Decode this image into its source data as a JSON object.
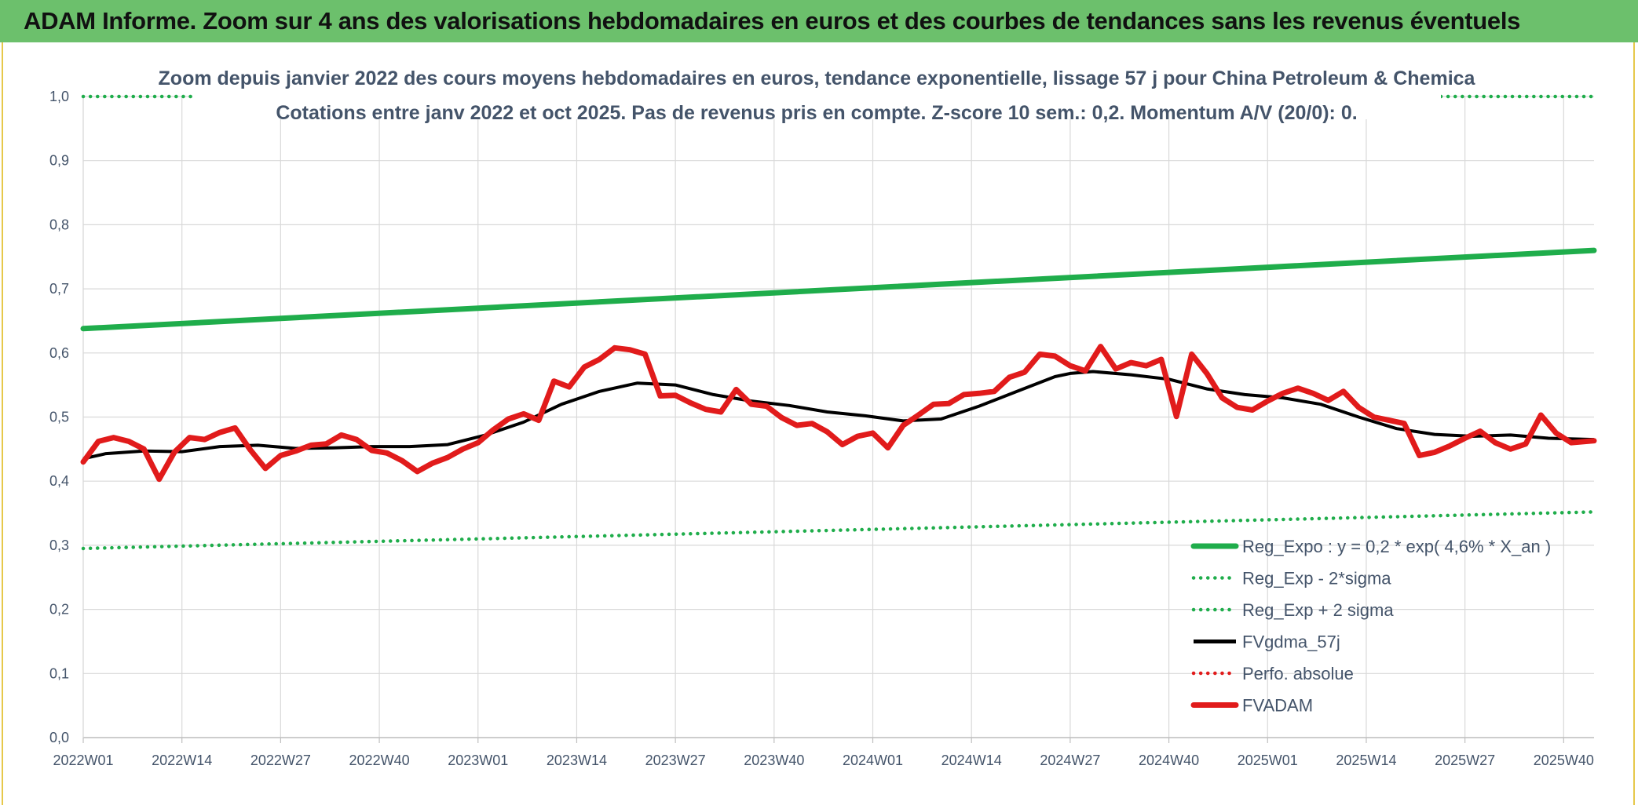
{
  "header": {
    "title": "ADAM Informe. Zoom sur 4 ans des valorisations hebdomadaires en euros et des courbes de tendances sans les revenus éventuels"
  },
  "chart_data": {
    "type": "line",
    "title": "Zoom depuis janvier 2022 des cours moyens hebdomadaires en euros, tendance exponentielle, lissage 57 j pour China Petroleum & Chemica",
    "subtitle": "Cotations entre janv 2022 et oct 2025. Pas de revenus pris en compte. Z-score 10 sem.: 0,2. Momentum A/V (20/0): 0.",
    "xlabel": "",
    "ylabel": "",
    "ylim": [
      0,
      1.0
    ],
    "y_ticks": [
      "0,0",
      "0,1",
      "0,2",
      "0,3",
      "0,4",
      "0,5",
      "0,6",
      "0,7",
      "0,8",
      "0,9",
      "1,0"
    ],
    "x_ticks": [
      "2022W01",
      "2022W14",
      "2022W27",
      "2022W40",
      "2023W01",
      "2023W14",
      "2023W27",
      "2023W40",
      "2024W01",
      "2024W14",
      "2024W27",
      "2024W40",
      "2025W01",
      "2025W14",
      "2025W27",
      "2025W40"
    ],
    "x_tick_index": [
      0,
      13,
      26,
      39,
      52,
      65,
      78,
      91,
      104,
      117,
      130,
      143,
      156,
      169,
      182,
      195
    ],
    "n_weeks": 200,
    "grid": true,
    "legend_position": "bottom-right",
    "series": [
      {
        "name": "Reg_Expo : y = 0,2 * exp( 4,6% *  X_an )",
        "color": "#1fad4b",
        "style": "solid-thick",
        "x": [
          0,
          199
        ],
        "values": [
          0.638,
          0.76
        ]
      },
      {
        "name": "Reg_Exp - 2*sigma",
        "color": "#1fad4b",
        "style": "dotted",
        "x": [
          0,
          199
        ],
        "values": [
          0.295,
          0.352
        ]
      },
      {
        "name": "Reg_Exp + 2 sigma",
        "color": "#1fad4b",
        "style": "dotted",
        "x": [
          0,
          199
        ],
        "values": [
          1.0,
          1.0
        ]
      },
      {
        "name": "FVgdma_57j",
        "color": "#000000",
        "style": "solid",
        "x": [
          0,
          3,
          8,
          13,
          18,
          23,
          28,
          33,
          38,
          43,
          48,
          53,
          58,
          63,
          68,
          73,
          78,
          83,
          88,
          93,
          98,
          103,
          108,
          113,
          118,
          123,
          128,
          130,
          133,
          138,
          143,
          148,
          153,
          158,
          163,
          168,
          173,
          178,
          183,
          188,
          193,
          199
        ],
        "values": [
          0.435,
          0.443,
          0.447,
          0.446,
          0.454,
          0.456,
          0.451,
          0.452,
          0.454,
          0.454,
          0.457,
          0.472,
          0.492,
          0.52,
          0.54,
          0.553,
          0.55,
          0.535,
          0.525,
          0.518,
          0.508,
          0.502,
          0.494,
          0.497,
          0.517,
          0.54,
          0.563,
          0.568,
          0.571,
          0.566,
          0.559,
          0.544,
          0.535,
          0.53,
          0.52,
          0.5,
          0.482,
          0.473,
          0.47,
          0.472,
          0.467,
          0.465
        ]
      },
      {
        "name": "Perfo. absolue",
        "color": "#e11b1b",
        "style": "dotted",
        "x": [],
        "values": []
      },
      {
        "name": "FVADAM",
        "color": "#e11b1b",
        "style": "solid-thick",
        "x": [
          0,
          2,
          4,
          6,
          8,
          10,
          12,
          14,
          16,
          18,
          20,
          22,
          24,
          26,
          28,
          30,
          32,
          34,
          36,
          38,
          40,
          42,
          44,
          46,
          48,
          50,
          52,
          54,
          56,
          58,
          60,
          62,
          64,
          66,
          68,
          70,
          72,
          74,
          76,
          78,
          80,
          82,
          84,
          86,
          88,
          90,
          92,
          94,
          96,
          98,
          100,
          102,
          104,
          106,
          108,
          110,
          112,
          114,
          116,
          118,
          120,
          122,
          124,
          126,
          128,
          130,
          132,
          134,
          136,
          138,
          140,
          142,
          144,
          146,
          148,
          150,
          152,
          154,
          156,
          158,
          160,
          162,
          164,
          166,
          168,
          170,
          172,
          174,
          176,
          178,
          180,
          182,
          184,
          186,
          188,
          190,
          192,
          194,
          196,
          199
        ],
        "values": [
          0.43,
          0.462,
          0.468,
          0.462,
          0.45,
          0.403,
          0.445,
          0.468,
          0.465,
          0.476,
          0.483,
          0.449,
          0.42,
          0.44,
          0.447,
          0.456,
          0.458,
          0.472,
          0.465,
          0.448,
          0.444,
          0.432,
          0.415,
          0.428,
          0.437,
          0.45,
          0.46,
          0.48,
          0.497,
          0.505,
          0.495,
          0.556,
          0.547,
          0.578,
          0.59,
          0.608,
          0.605,
          0.598,
          0.533,
          0.534,
          0.522,
          0.512,
          0.508,
          0.543,
          0.52,
          0.517,
          0.499,
          0.487,
          0.49,
          0.477,
          0.457,
          0.47,
          0.475,
          0.452,
          0.487,
          0.503,
          0.52,
          0.521,
          0.535,
          0.537,
          0.54,
          0.562,
          0.57,
          0.598,
          0.595,
          0.58,
          0.572,
          0.61,
          0.575,
          0.585,
          0.58,
          0.59,
          0.501,
          0.598,
          0.568,
          0.53,
          0.515,
          0.511,
          0.525,
          0.537,
          0.545,
          0.537,
          0.526,
          0.54,
          0.515,
          0.5,
          0.495,
          0.49,
          0.44,
          0.445,
          0.455,
          0.467,
          0.478,
          0.46,
          0.45,
          0.458,
          0.503,
          0.475,
          0.46,
          0.463
        ]
      }
    ]
  },
  "legend": {
    "items": [
      {
        "label": "Reg_Expo : y = 0,2 * exp( 4,6% *  X_an )",
        "color": "#1fad4b",
        "style": "solid-thick"
      },
      {
        "label": "Reg_Exp - 2*sigma",
        "color": "#1fad4b",
        "style": "dotted"
      },
      {
        "label": "Reg_Exp + 2 sigma",
        "color": "#1fad4b",
        "style": "dotted"
      },
      {
        "label": "FVgdma_57j",
        "color": "#000000",
        "style": "solid"
      },
      {
        "label": "Perfo. absolue",
        "color": "#e11b1b",
        "style": "dotted"
      },
      {
        "label": "FVADAM",
        "color": "#e11b1b",
        "style": "solid-thick"
      }
    ]
  }
}
